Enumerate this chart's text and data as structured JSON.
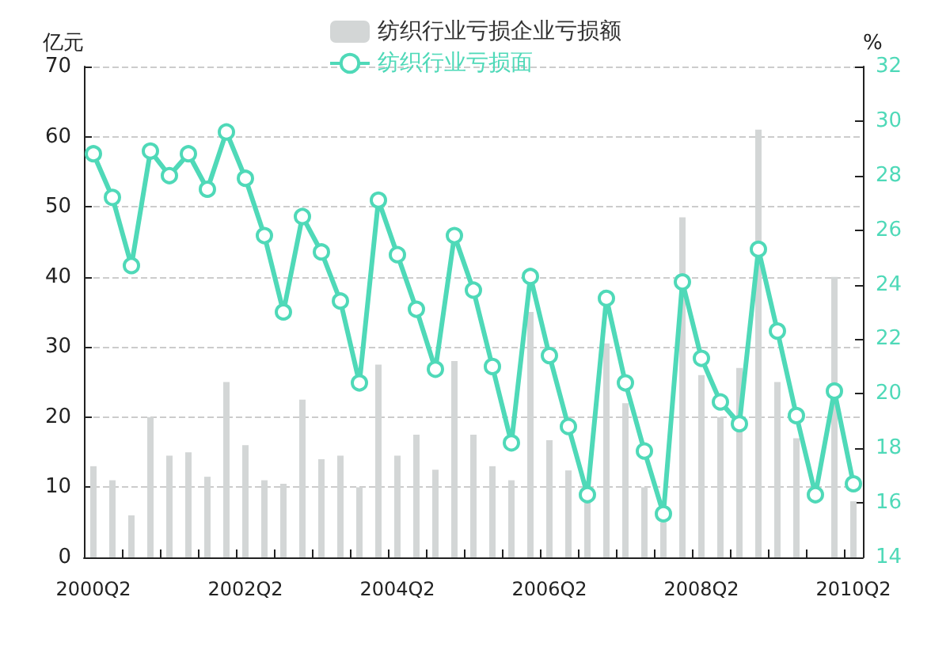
{
  "chart_data": {
    "type": "bar",
    "ylabel": "亿元",
    "y2label": "%",
    "categories": [
      "2000Q2",
      null,
      null,
      null,
      null,
      null,
      null,
      null,
      "2002Q2",
      null,
      null,
      null,
      null,
      null,
      null,
      null,
      "2004Q2",
      null,
      null,
      null,
      null,
      null,
      null,
      null,
      "2006Q2",
      null,
      null,
      null,
      null,
      null,
      null,
      null,
      "2008Q2",
      null,
      null,
      null,
      null,
      null,
      null,
      null,
      "2010Q2"
    ],
    "series": [
      {
        "name": "纺织行业亏损企业亏损额",
        "color": "#d3d6d6",
        "values": [
          13,
          11,
          6,
          20,
          14.5,
          15,
          11.5,
          25,
          16,
          11,
          10.5,
          22.5,
          14,
          14.5,
          10,
          27.5,
          14.5,
          17.5,
          12.5,
          28,
          17.5,
          13,
          11,
          35,
          16.7,
          12.4,
          8,
          30.5,
          22,
          10,
          5,
          48.5,
          26,
          20,
          27,
          61,
          25,
          17,
          null,
          40,
          8
        ]
      },
      {
        "name": "纺织行业亏损面",
        "type": "line",
        "axis": "y2",
        "color": "#4fd9b8",
        "values": [
          28.8,
          27.2,
          24.7,
          28.9,
          28,
          28.8,
          27.5,
          29.6,
          27.9,
          25.8,
          23,
          26.5,
          25.2,
          23.4,
          20.4,
          27.1,
          25.1,
          23.1,
          20.9,
          25.8,
          23.8,
          21,
          18.2,
          24.3,
          21.4,
          18.8,
          16.3,
          23.5,
          20.4,
          17.9,
          15.6,
          24.1,
          21.3,
          19.7,
          18.9,
          25.3,
          22.3,
          19.2,
          16.3,
          20.1,
          16.7
        ]
      }
    ],
    "ylim": [
      0,
      70
    ],
    "yticks": [
      0,
      10,
      20,
      30,
      40,
      50,
      60,
      70
    ],
    "y2lim": [
      14,
      32
    ],
    "y2ticks": [
      14,
      16,
      18,
      20,
      22,
      24,
      26,
      28,
      30,
      32
    ],
    "grid": "y",
    "legend": "top",
    "marker": "circle"
  }
}
